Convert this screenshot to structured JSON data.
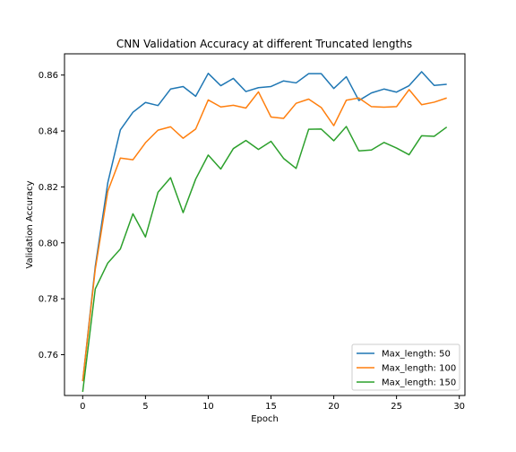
{
  "chart_data": {
    "type": "line",
    "title": "CNN Validation Accuracy at different Truncated lengths",
    "xlabel": "Epoch",
    "ylabel": "Validation Accuracy",
    "xlim": [
      -1.45,
      30.45
    ],
    "ylim": [
      0.7454,
      0.8676
    ],
    "xticks": [
      0,
      5,
      10,
      15,
      20,
      25,
      30
    ],
    "yticks": [
      0.76,
      0.78,
      0.8,
      0.82,
      0.84,
      0.86
    ],
    "ytick_labels": [
      "0.76",
      "0.78",
      "0.80",
      "0.82",
      "0.84",
      "0.86"
    ],
    "grid": false,
    "legend_position": "lower-right",
    "x": [
      0,
      1,
      2,
      3,
      4,
      5,
      6,
      7,
      8,
      9,
      10,
      11,
      12,
      13,
      14,
      15,
      16,
      17,
      18,
      19,
      20,
      21,
      22,
      23,
      24,
      25,
      26,
      27,
      28,
      29
    ],
    "series": [
      {
        "name": "Max_length: 50",
        "color": "#1f77b4",
        "values": [
          0.7505,
          0.7915,
          0.8215,
          0.8404,
          0.8467,
          0.8502,
          0.8491,
          0.855,
          0.8559,
          0.8524,
          0.8606,
          0.8562,
          0.8588,
          0.8541,
          0.8555,
          0.8559,
          0.8579,
          0.8572,
          0.8605,
          0.8605,
          0.8552,
          0.8594,
          0.8509,
          0.8536,
          0.855,
          0.8539,
          0.8562,
          0.8612,
          0.8563,
          0.8567
        ]
      },
      {
        "name": "Max_length: 100",
        "color": "#ff7f0e",
        "values": [
          0.7505,
          0.7905,
          0.8185,
          0.8303,
          0.8297,
          0.8358,
          0.8403,
          0.8415,
          0.8374,
          0.8407,
          0.8511,
          0.8486,
          0.8492,
          0.8482,
          0.854,
          0.845,
          0.8445,
          0.8499,
          0.8514,
          0.8484,
          0.8419,
          0.851,
          0.8518,
          0.8487,
          0.8485,
          0.8487,
          0.8548,
          0.8494,
          0.8503,
          0.8518
        ]
      },
      {
        "name": "Max_length: 150",
        "color": "#2ca02c",
        "values": [
          0.7467,
          0.7835,
          0.7928,
          0.7978,
          0.8104,
          0.8021,
          0.8181,
          0.8233,
          0.8108,
          0.8228,
          0.8314,
          0.8264,
          0.8337,
          0.8366,
          0.8334,
          0.8363,
          0.8302,
          0.8266,
          0.8406,
          0.8407,
          0.8365,
          0.8416,
          0.8329,
          0.8332,
          0.8359,
          0.8339,
          0.8315,
          0.8383,
          0.8381,
          0.8414
        ]
      }
    ]
  }
}
